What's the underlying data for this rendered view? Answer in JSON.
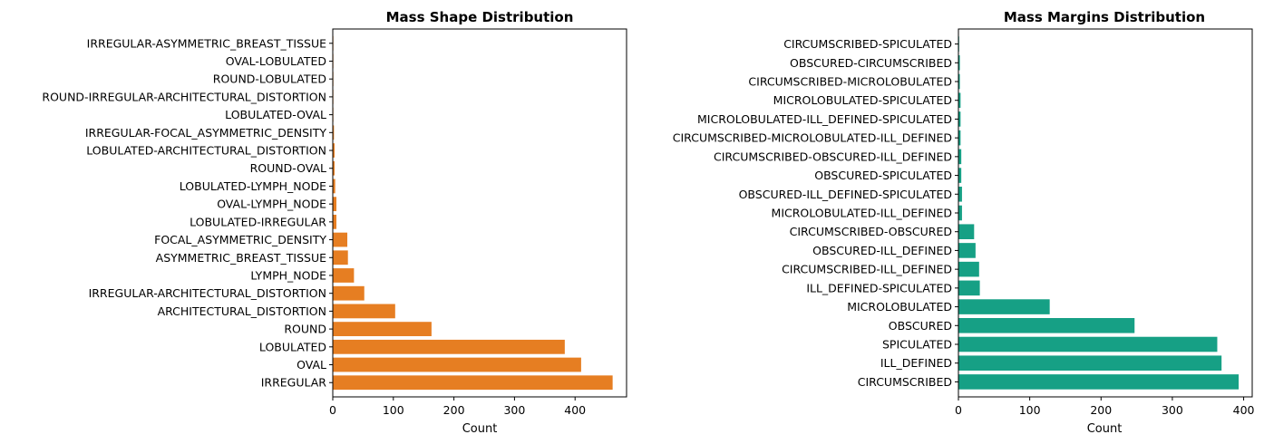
{
  "chart_data": [
    {
      "type": "bar",
      "orientation": "horizontal",
      "title": "Mass Shape Distribution",
      "xlabel": "Count",
      "ylabel": "",
      "xlim": [
        0,
        485
      ],
      "xticks": [
        0,
        100,
        200,
        300,
        400
      ],
      "color": "#e67e22",
      "grid": false,
      "categories": [
        "IRREGULAR",
        "OVAL",
        "LOBULATED",
        "ROUND",
        "ARCHITECTURAL_DISTORTION",
        "IRREGULAR-ARCHITECTURAL_DISTORTION",
        "LYMPH_NODE",
        "ASYMMETRIC_BREAST_TISSUE",
        "FOCAL_ASYMMETRIC_DENSITY",
        "LOBULATED-IRREGULAR",
        "OVAL-LYMPH_NODE",
        "LOBULATED-LYMPH_NODE",
        "ROUND-OVAL",
        "LOBULATED-ARCHITECTURAL_DISTORTION",
        "IRREGULAR-FOCAL_ASYMMETRIC_DENSITY",
        "LOBULATED-OVAL",
        "ROUND-IRREGULAR-ARCHITECTURAL_DISTORTION",
        "ROUND-LOBULATED",
        "OVAL-LOBULATED",
        "IRREGULAR-ASYMMETRIC_BREAST_TISSUE"
      ],
      "values": [
        462,
        410,
        383,
        163,
        103,
        52,
        35,
        25,
        24,
        6,
        6,
        4,
        3,
        3,
        2,
        1,
        1,
        1,
        1,
        1
      ]
    },
    {
      "type": "bar",
      "orientation": "horizontal",
      "title": "Mass Margins Distribution",
      "xlabel": "Count",
      "ylabel": "",
      "xlim": [
        0,
        412
      ],
      "xticks": [
        0,
        100,
        200,
        300,
        400
      ],
      "color": "#16a085",
      "grid": false,
      "categories": [
        "CIRCUMSCRIBED",
        "ILL_DEFINED",
        "SPICULATED",
        "OBSCURED",
        "MICROLOBULATED",
        "ILL_DEFINED-SPICULATED",
        "CIRCUMSCRIBED-ILL_DEFINED",
        "OBSCURED-ILL_DEFINED",
        "CIRCUMSCRIBED-OBSCURED",
        "MICROLOBULATED-ILL_DEFINED",
        "OBSCURED-ILL_DEFINED-SPICULATED",
        "OBSCURED-SPICULATED",
        "CIRCUMSCRIBED-OBSCURED-ILL_DEFINED",
        "CIRCUMSCRIBED-MICROLOBULATED-ILL_DEFINED",
        "MICROLOBULATED-ILL_DEFINED-SPICULATED",
        "MICROLOBULATED-SPICULATED",
        "CIRCUMSCRIBED-MICROLOBULATED",
        "OBSCURED-CIRCUMSCRIBED",
        "CIRCUMSCRIBED-SPICULATED"
      ],
      "values": [
        393,
        369,
        363,
        247,
        128,
        30,
        29,
        24,
        22,
        5,
        5,
        4,
        4,
        3,
        3,
        3,
        2,
        2,
        1
      ]
    }
  ]
}
